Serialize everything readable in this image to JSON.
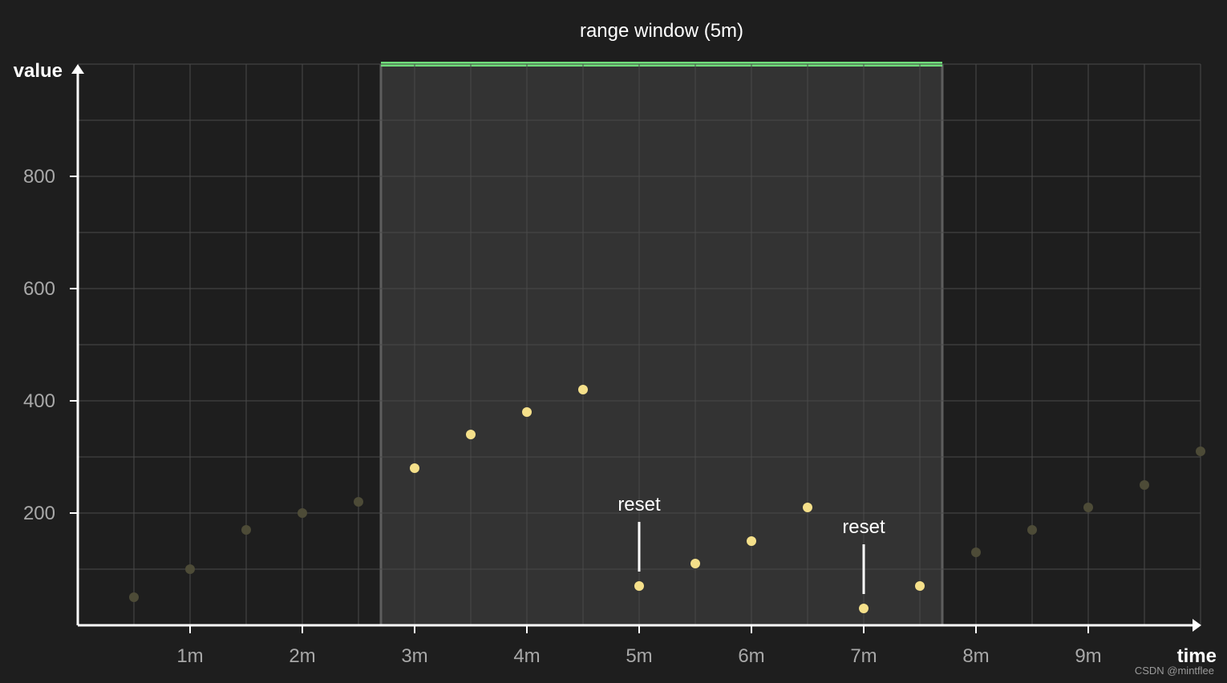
{
  "chart_data": {
    "type": "scatter",
    "title": "range window (5m)",
    "xlabel": "time",
    "ylabel": "value",
    "xlim": [
      0,
      10
    ],
    "ylim": [
      0,
      1000
    ],
    "x_ticks": [
      {
        "value": 1,
        "label": "1m"
      },
      {
        "value": 2,
        "label": "2m"
      },
      {
        "value": 3,
        "label": "3m"
      },
      {
        "value": 4,
        "label": "4m"
      },
      {
        "value": 5,
        "label": "5m"
      },
      {
        "value": 6,
        "label": "6m"
      },
      {
        "value": 7,
        "label": "7m"
      },
      {
        "value": 8,
        "label": "8m"
      },
      {
        "value": 9,
        "label": "9m"
      }
    ],
    "y_ticks": [
      {
        "value": 200,
        "label": "200"
      },
      {
        "value": 400,
        "label": "400"
      },
      {
        "value": 600,
        "label": "600"
      },
      {
        "value": 800,
        "label": "800"
      }
    ],
    "grid": true,
    "x_grid_step": 0.5,
    "y_grid_step": 100,
    "range_window": {
      "start": 2.7,
      "end": 7.7
    },
    "points": [
      {
        "x": 0.5,
        "y": 50
      },
      {
        "x": 1.0,
        "y": 100
      },
      {
        "x": 1.5,
        "y": 170
      },
      {
        "x": 2.0,
        "y": 200
      },
      {
        "x": 2.5,
        "y": 220
      },
      {
        "x": 3.0,
        "y": 280
      },
      {
        "x": 3.5,
        "y": 340
      },
      {
        "x": 4.0,
        "y": 380
      },
      {
        "x": 4.5,
        "y": 420
      },
      {
        "x": 5.0,
        "y": 70
      },
      {
        "x": 5.5,
        "y": 110
      },
      {
        "x": 6.0,
        "y": 150
      },
      {
        "x": 6.5,
        "y": 210
      },
      {
        "x": 7.0,
        "y": 30
      },
      {
        "x": 7.5,
        "y": 70
      },
      {
        "x": 8.0,
        "y": 130
      },
      {
        "x": 8.5,
        "y": 170
      },
      {
        "x": 9.0,
        "y": 210
      },
      {
        "x": 9.5,
        "y": 250
      },
      {
        "x": 10.0,
        "y": 310
      }
    ],
    "annotations": [
      {
        "text": "reset",
        "x": 5.0,
        "y": 70
      },
      {
        "text": "reset",
        "x": 7.0,
        "y": 30
      }
    ],
    "colors": {
      "background": "#1e1e1e",
      "window_fill": "#333333",
      "window_bar": "#6fdc7a",
      "point_active": "#f5e08a",
      "point_inactive": "#4d4b37",
      "grid": "#4a4a4a",
      "axis": "#ffffff",
      "tick_label": "#a8a8a8",
      "text": "#ffffff"
    }
  },
  "watermark": "CSDN @mintflee"
}
